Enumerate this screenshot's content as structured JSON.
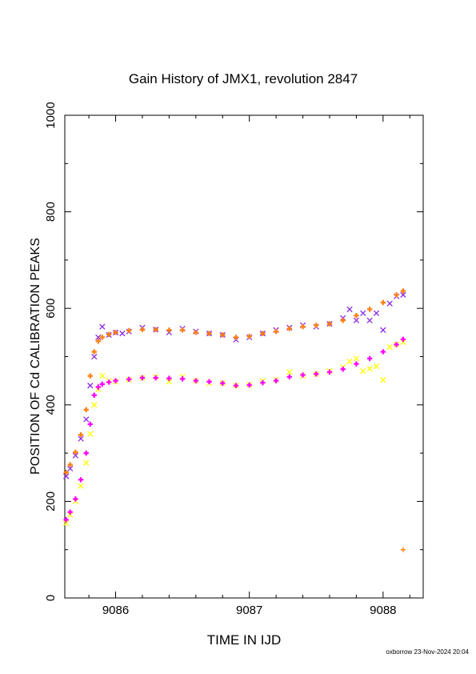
{
  "chart_data": {
    "type": "scatter",
    "title": "Gain History of JMX1, revolution 2847",
    "xlabel": "TIME IN IJD",
    "ylabel": "POSITION OF Cd CALIBRATION PEAKS",
    "xlim": [
      9085.62,
      9088.3
    ],
    "ylim": [
      0,
      1000
    ],
    "xticks": [
      9086,
      9087,
      9088
    ],
    "yticks": [
      0,
      200,
      400,
      600,
      800,
      1000
    ],
    "grid": false,
    "legend": "none",
    "colors": {
      "upper_raw": "#8a2be2",
      "upper_fit": "#ff7f0e",
      "lower_raw": "#ffff00",
      "lower_fit": "#ff00ff"
    },
    "series": [
      {
        "marker": "x",
        "color": "#8a2be2",
        "x": [
          9085.63,
          9085.66,
          9085.7,
          9085.74,
          9085.78,
          9085.81,
          9085.84,
          9085.87,
          9085.9,
          9085.95,
          9086.0,
          9086.05,
          9086.1,
          9086.2,
          9086.3,
          9086.4,
          9086.5,
          9086.6,
          9086.7,
          9086.8,
          9086.9,
          9087.0,
          9087.1,
          9087.2,
          9087.3,
          9087.4,
          9087.5,
          9087.6,
          9087.7,
          9087.75,
          9087.8,
          9087.85,
          9087.9,
          9087.95,
          9088.0,
          9088.05,
          9088.1,
          9088.15
        ],
        "y": [
          252,
          268,
          295,
          330,
          370,
          440,
          500,
          540,
          562,
          545,
          550,
          548,
          552,
          560,
          556,
          550,
          558,
          552,
          548,
          545,
          535,
          540,
          548,
          555,
          560,
          565,
          562,
          568,
          580,
          598,
          575,
          590,
          575,
          590,
          555,
          610,
          625,
          628
        ]
      },
      {
        "marker": "+",
        "color": "#ff7f0e",
        "x": [
          9085.63,
          9085.66,
          9085.7,
          9085.74,
          9085.78,
          9085.81,
          9085.84,
          9085.87,
          9085.9,
          9085.95,
          9086.0,
          9086.1,
          9086.2,
          9086.3,
          9086.4,
          9086.5,
          9086.6,
          9086.7,
          9086.8,
          9086.9,
          9087.0,
          9087.1,
          9087.2,
          9087.3,
          9087.4,
          9087.5,
          9087.6,
          9087.7,
          9087.8,
          9087.9,
          9088.0,
          9088.1,
          9088.15
        ],
        "y": [
          260,
          276,
          302,
          338,
          390,
          460,
          510,
          532,
          540,
          546,
          550,
          554,
          556,
          556,
          555,
          555,
          550,
          548,
          545,
          540,
          542,
          548,
          552,
          558,
          562,
          565,
          568,
          575,
          585,
          598,
          612,
          628,
          636
        ]
      },
      {
        "marker": "x",
        "color": "#ffff00",
        "x": [
          9085.63,
          9085.66,
          9085.7,
          9085.74,
          9085.78,
          9085.81,
          9085.84,
          9085.87,
          9085.9,
          9085.95,
          9086.0,
          9086.1,
          9086.2,
          9086.3,
          9086.4,
          9086.5,
          9086.6,
          9086.7,
          9086.8,
          9086.9,
          9087.0,
          9087.1,
          9087.2,
          9087.3,
          9087.4,
          9087.5,
          9087.6,
          9087.7,
          9087.75,
          9087.8,
          9087.85,
          9087.9,
          9087.95,
          9088.0,
          9088.05,
          9088.1,
          9088.15
        ],
        "y": [
          155,
          172,
          200,
          232,
          280,
          340,
          400,
          432,
          460,
          450,
          448,
          452,
          456,
          458,
          448,
          458,
          450,
          445,
          445,
          440,
          442,
          450,
          452,
          468,
          460,
          464,
          470,
          478,
          490,
          496,
          470,
          475,
          480,
          452,
          520,
          525,
          530
        ]
      },
      {
        "marker": "+",
        "color": "#ff00ff",
        "x": [
          9085.63,
          9085.66,
          9085.7,
          9085.74,
          9085.78,
          9085.81,
          9085.84,
          9085.87,
          9085.9,
          9085.95,
          9086.0,
          9086.1,
          9086.2,
          9086.3,
          9086.4,
          9086.5,
          9086.6,
          9086.7,
          9086.8,
          9086.9,
          9087.0,
          9087.1,
          9087.2,
          9087.3,
          9087.4,
          9087.5,
          9087.6,
          9087.7,
          9087.8,
          9087.9,
          9088.0,
          9088.1,
          9088.15
        ],
        "y": [
          162,
          178,
          205,
          245,
          300,
          360,
          420,
          437,
          443,
          447,
          450,
          453,
          456,
          456,
          455,
          454,
          450,
          448,
          445,
          440,
          441,
          446,
          450,
          458,
          462,
          464,
          468,
          474,
          485,
          496,
          510,
          525,
          536
        ]
      },
      {
        "marker": "+",
        "color": "#ff7f0e",
        "x": [
          9088.15
        ],
        "y": [
          100
        ]
      }
    ]
  },
  "footer": "oxborrow 23-Nov-2024 20:04"
}
